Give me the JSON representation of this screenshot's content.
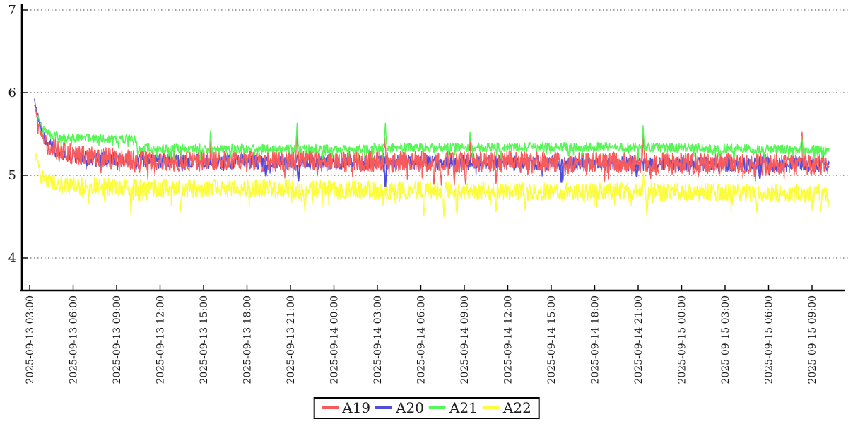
{
  "page": {
    "background": "#ffffff"
  },
  "chart_data": {
    "type": "line",
    "title": "",
    "xlabel": "",
    "ylabel": "",
    "x_axis_kind": "datetime",
    "x_tick_interval_hours": 3,
    "x_tick_labels": [
      "2025-09-13 03:00",
      "2025-09-13 06:00",
      "2025-09-13 09:00",
      "2025-09-13 12:00",
      "2025-09-13 15:00",
      "2025-09-13 18:00",
      "2025-09-13 21:00",
      "2025-09-14 00:00",
      "2025-09-14 03:00",
      "2025-09-14 06:00",
      "2025-09-14 09:00",
      "2025-09-14 12:00",
      "2025-09-14 15:00",
      "2025-09-14 18:00",
      "2025-09-14 21:00",
      "2025-09-15 00:00",
      "2025-09-15 03:00",
      "2025-09-15 06:00",
      "2025-09-15 09:00"
    ],
    "y_ticks": [
      4,
      5,
      6,
      7
    ],
    "ylim": [
      3.55,
      7.06
    ],
    "grid": {
      "dotted": true,
      "color": "#444444"
    },
    "legend_position": "bottom-center",
    "t_end": 55.2,
    "dt": 0.03,
    "series": [
      {
        "name": "A19",
        "color": "#f75b5b",
        "z": 1,
        "seed": 1913,
        "t_start": 0.33,
        "jitter": [
          0.13,
          0.13
        ],
        "dip": {
          "p": 0.05,
          "min": 0.03,
          "max": 0.14
        },
        "keyframes": [
          [
            0.33,
            5.86
          ],
          [
            0.55,
            5.65
          ],
          [
            0.85,
            5.48
          ],
          [
            1.3,
            5.36
          ],
          [
            2.2,
            5.28
          ],
          [
            4,
            5.22
          ],
          [
            8,
            5.18
          ],
          [
            20,
            5.17
          ],
          [
            30,
            5.16
          ],
          [
            44,
            5.15
          ],
          [
            55.2,
            5.13
          ]
        ],
        "events": [
          [
            12.5,
            5.42
          ],
          [
            18.45,
            5.57
          ],
          [
            24.5,
            5.45
          ],
          [
            27.9,
            4.89
          ],
          [
            28.4,
            4.88
          ],
          [
            29.3,
            4.88
          ],
          [
            30.1,
            4.89
          ],
          [
            30.4,
            5.45
          ],
          [
            32.2,
            4.9
          ],
          [
            36.8,
            4.93
          ],
          [
            42.35,
            5.5
          ],
          [
            53.3,
            5.52
          ]
        ]
      },
      {
        "name": "A20",
        "color": "#4d4de0",
        "z": 0,
        "seed": 2077,
        "t_start": 0.33,
        "jitter": [
          0.09,
          0.09
        ],
        "dip": {
          "p": 0.03,
          "min": 0.03,
          "max": 0.1
        },
        "keyframes": [
          [
            0.33,
            5.92
          ],
          [
            0.5,
            5.78
          ],
          [
            0.8,
            5.55
          ],
          [
            1.2,
            5.38
          ],
          [
            2.0,
            5.28
          ],
          [
            4,
            5.2
          ],
          [
            10,
            5.17
          ],
          [
            55.2,
            5.13
          ]
        ],
        "events": [],
        "visible_dips": [
          [
            16.3,
            4.99
          ],
          [
            18.55,
            4.93
          ],
          [
            24.55,
            4.86
          ],
          [
            36.7,
            4.91
          ],
          [
            41.9,
            4.98
          ],
          [
            50.4,
            4.96
          ]
        ]
      },
      {
        "name": "A21",
        "color": "#58f558",
        "z": 2,
        "seed": 2141,
        "t_start": 0.55,
        "jitter": [
          0.06,
          0.05
        ],
        "dip": {
          "p": 0.07,
          "min": 0.03,
          "max": 0.1
        },
        "keyframes": [
          [
            0.55,
            5.72
          ],
          [
            0.9,
            5.58
          ],
          [
            1.4,
            5.5
          ],
          [
            2.2,
            5.46
          ],
          [
            7.3,
            5.44
          ],
          [
            7.5,
            5.33
          ],
          [
            23,
            5.32
          ],
          [
            24,
            5.34
          ],
          [
            30,
            5.34
          ],
          [
            40,
            5.35
          ],
          [
            47,
            5.33
          ],
          [
            55.2,
            5.31
          ]
        ],
        "events": [
          [
            12.5,
            5.54
          ],
          [
            18.45,
            5.63
          ],
          [
            24.55,
            5.63
          ],
          [
            30.4,
            5.52
          ],
          [
            42.35,
            5.6
          ],
          [
            47.6,
            5.24
          ],
          [
            47.75,
            5.23
          ],
          [
            53.3,
            5.47
          ]
        ]
      },
      {
        "name": "A22",
        "color": "#fcfc3f",
        "z": 3,
        "seed": 2234,
        "t_start": 0.42,
        "jitter": [
          0.11,
          0.11
        ],
        "dip": {
          "p": 0.06,
          "min": 0.04,
          "max": 0.15
        },
        "keyframes": [
          [
            0.42,
            5.3
          ],
          [
            0.7,
            5.05
          ],
          [
            1.1,
            4.95
          ],
          [
            2.0,
            4.89
          ],
          [
            4,
            4.86
          ],
          [
            10,
            4.84
          ],
          [
            20,
            4.83
          ],
          [
            30,
            4.81
          ],
          [
            42,
            4.8
          ],
          [
            55.2,
            4.78
          ]
        ],
        "events": [
          [
            7.0,
            4.52
          ],
          [
            10.4,
            4.56
          ],
          [
            19.0,
            4.56
          ],
          [
            27.2,
            4.52
          ],
          [
            28.6,
            4.5
          ],
          [
            29.5,
            4.52
          ],
          [
            32.2,
            4.56
          ],
          [
            34.2,
            4.58
          ],
          [
            42.35,
            5.03
          ],
          [
            42.6,
            4.52
          ],
          [
            50.2,
            4.55
          ],
          [
            54.0,
            4.58
          ],
          [
            54.6,
            4.56
          ],
          [
            55.1,
            4.6
          ]
        ]
      }
    ]
  },
  "axes": {
    "color": "#000000",
    "tick_label_color": "#1a1a1a"
  }
}
